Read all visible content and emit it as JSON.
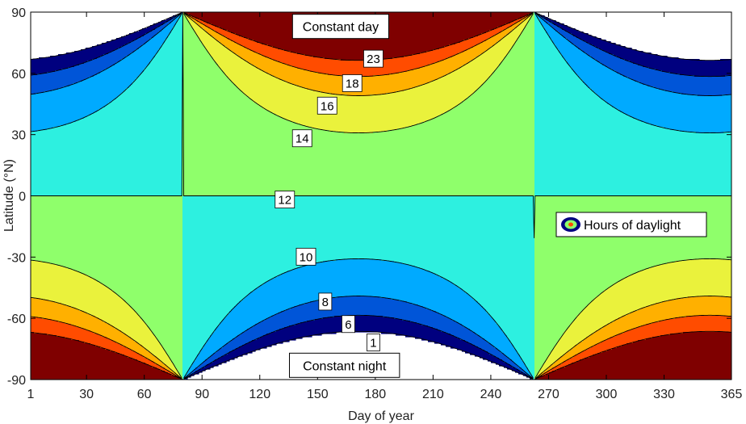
{
  "chart_data": {
    "type": "contour",
    "xlabel": "Day of year",
    "ylabel": "Latitude (°N)",
    "xlim": [
      1,
      365
    ],
    "ylim": [
      -90,
      90
    ],
    "xticks": [
      1,
      30,
      60,
      90,
      120,
      150,
      180,
      210,
      240,
      270,
      300,
      330,
      365
    ],
    "yticks": [
      -90,
      -60,
      -30,
      0,
      30,
      60,
      90
    ],
    "contour_levels": [
      1,
      6,
      8,
      10,
      12,
      14,
      16,
      18,
      23
    ],
    "colormap": [
      "#00007f",
      "#0055d8",
      "#00aaff",
      "#2df0e0",
      "#8fff6b",
      "#eaf23c",
      "#ffb000",
      "#ff4c00",
      "#7f0000"
    ],
    "contour_labels": [
      {
        "text": "23",
        "day": 179,
        "lat": 67
      },
      {
        "text": "18",
        "day": 168,
        "lat": 55
      },
      {
        "text": "16",
        "day": 155,
        "lat": 44
      },
      {
        "text": "14",
        "day": 142,
        "lat": 28
      },
      {
        "text": "12",
        "day": 133,
        "lat": -2
      },
      {
        "text": "10",
        "day": 144,
        "lat": -30
      },
      {
        "text": "8",
        "day": 154,
        "lat": -52
      },
      {
        "text": "6",
        "day": 166,
        "lat": -63
      },
      {
        "text": "1",
        "day": 179,
        "lat": -72
      }
    ],
    "annotations": [
      {
        "text": "Constant day",
        "day": 162,
        "lat": 83
      },
      {
        "text": "Constant night",
        "day": 164,
        "lat": -83
      }
    ],
    "legend": {
      "label": "Hours of daylight",
      "placement": "right"
    },
    "grid": false
  }
}
